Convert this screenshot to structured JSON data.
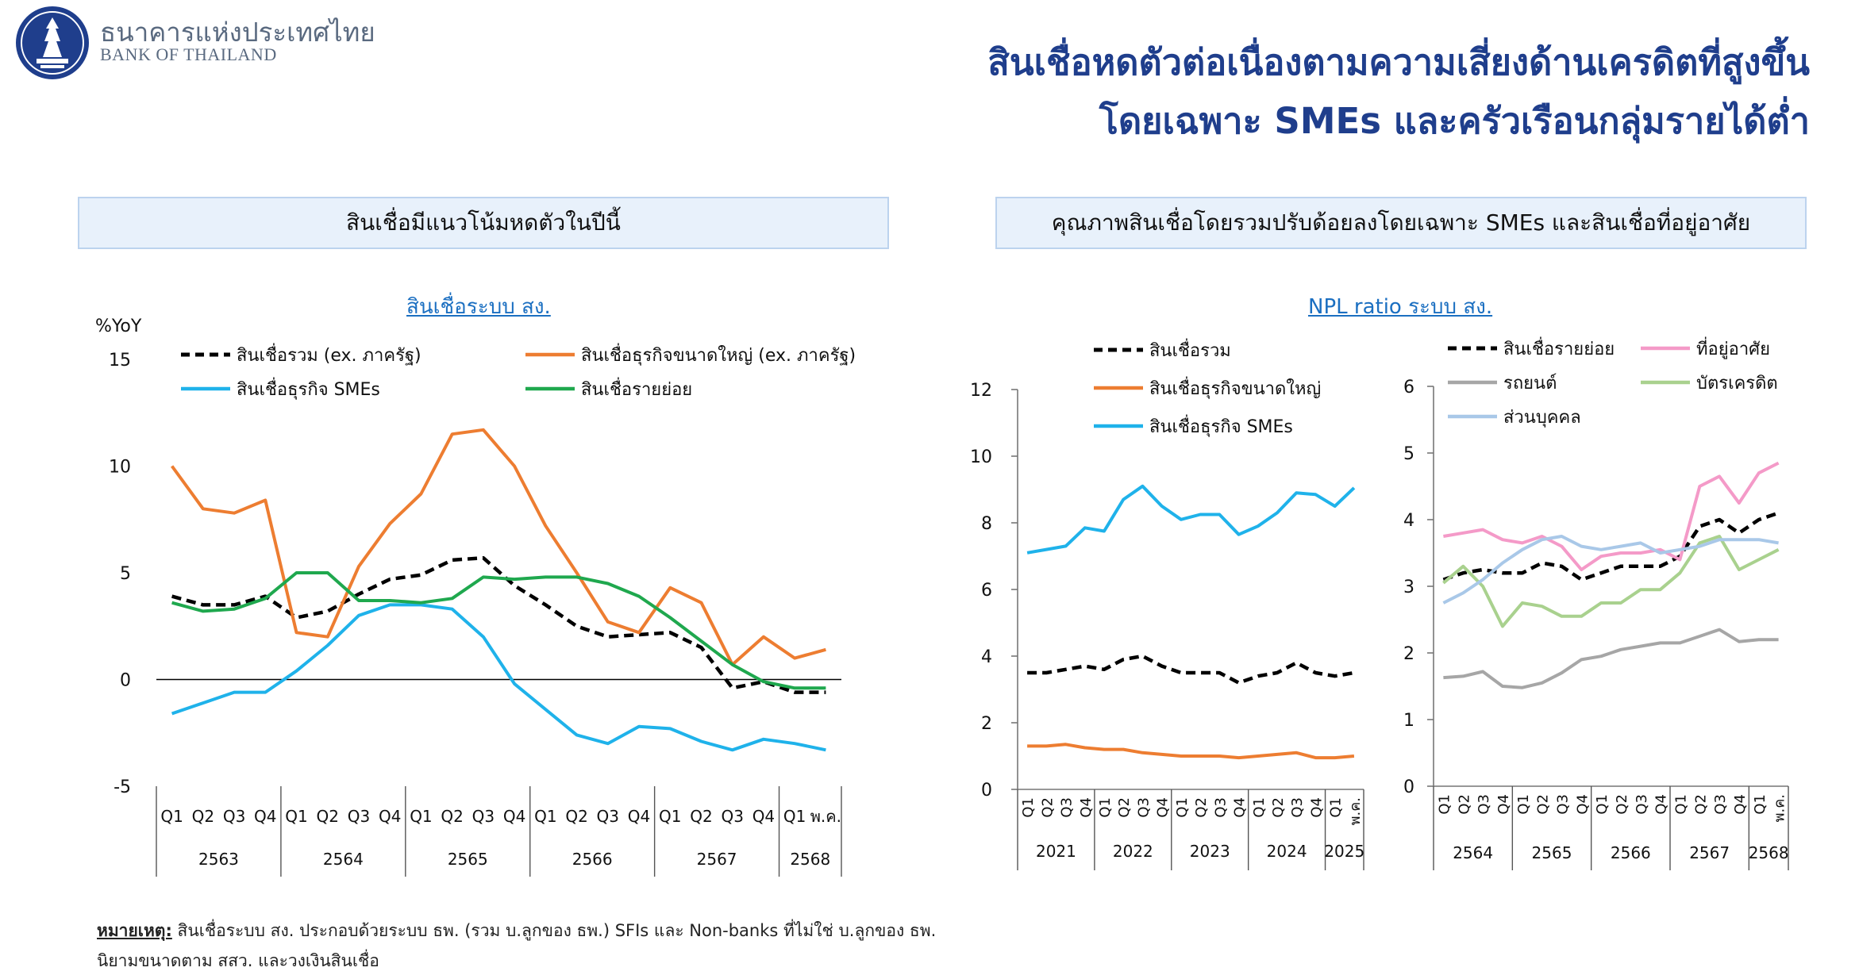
{
  "header": {
    "bank_name_th": "ธนาคารแห่งประเทศไทย",
    "bank_name_en": "BANK OF THAILAND",
    "headline_line1": "สินเชื่อหดตัวต่อเนื่องตามความเสี่ยงด้านเครดิตที่สูงขึ้น",
    "headline_line2": "โดยเฉพาะ SMEs และครัวเรือนกลุ่มรายได้ต่ำ"
  },
  "panels": {
    "left_title": "สินเชื่อมีแนวโน้มหดตัวในปีนี้",
    "right_title": "คุณภาพสินเชื่อโดยรวมปรับด้อยลงโดยเฉพาะ SMEs และสินเชื่อที่อยู่อาศัย"
  },
  "note": {
    "label": "หมายเหตุ:",
    "line1": " สินเชื่อระบบ สง. ประกอบด้วยระบบ ธพ. (รวม บ.ลูกของ ธพ.) SFIs และ Non-banks ที่ไม่ใช่ บ.ลูกของ ธพ.",
    "line2": "นิยามขนาดตาม สสว. และวงเงินสินเชื่อ"
  },
  "colors": {
    "black": "#000000",
    "orange": "#ed7d31",
    "blue": "#1fb2ea",
    "green": "#1fa84e",
    "gray": "#a6a6a6",
    "pink": "#f49ac8",
    "lightgreen": "#a9d18e",
    "lightblue": "#a9c8e8"
  },
  "chart_data": [
    {
      "type": "line",
      "title": "สินเชื่อระบบ สง.",
      "ylabel": "%YoY",
      "ylim": [
        -5,
        15
      ],
      "yticks": [
        -5,
        0,
        5,
        10,
        15
      ],
      "quarters": [
        "Q1",
        "Q2",
        "Q3",
        "Q4",
        "Q1",
        "Q2",
        "Q3",
        "Q4",
        "Q1",
        "Q2",
        "Q3",
        "Q4",
        "Q1",
        "Q2",
        "Q3",
        "Q4",
        "Q1",
        "Q2",
        "Q3",
        "Q4",
        "Q1",
        "พ.ค."
      ],
      "years": [
        {
          "label": "2563",
          "span": 4
        },
        {
          "label": "2564",
          "span": 4
        },
        {
          "label": "2565",
          "span": 4
        },
        {
          "label": "2566",
          "span": 4
        },
        {
          "label": "2567",
          "span": 4
        },
        {
          "label": "2568",
          "span": 2
        }
      ],
      "half_step": true,
      "series": [
        {
          "name": "สินเชื่อรวม (ex. ภาครัฐ)",
          "color": "#000000",
          "dash": true,
          "values": [
            3.9,
            3.5,
            3.5,
            3.9,
            2.9,
            3.2,
            4.0,
            4.7,
            4.9,
            5.6,
            5.7,
            4.4,
            3.5,
            2.5,
            2.0,
            2.1,
            2.2,
            1.5,
            -0.4,
            -0.1,
            -0.6,
            -0.6
          ]
        },
        {
          "name": "สินเชื่อธุรกิจขนาดใหญ่ (ex. ภาครัฐ)",
          "color": "#ed7d31",
          "dash": false,
          "values": [
            10.0,
            8.0,
            7.8,
            8.4,
            2.2,
            2.0,
            5.3,
            7.3,
            8.7,
            11.5,
            11.7,
            10.0,
            7.2,
            5.0,
            2.7,
            2.2,
            4.3,
            3.6,
            0.7,
            2.0,
            1.0,
            1.4
          ]
        },
        {
          "name": "สินเชื่อธุรกิจ SMEs",
          "color": "#1fb2ea",
          "dash": false,
          "values": [
            -1.6,
            -1.1,
            -0.6,
            -0.6,
            0.4,
            1.6,
            3.0,
            3.5,
            3.5,
            3.3,
            2.0,
            -0.2,
            -1.4,
            -2.6,
            -3.0,
            -2.2,
            -2.3,
            -2.9,
            -3.3,
            -2.8,
            -3.0,
            -3.3
          ]
        },
        {
          "name": "สินเชื่อรายย่อย",
          "color": "#1fa84e",
          "dash": false,
          "values": [
            3.6,
            3.2,
            3.3,
            3.8,
            5.0,
            5.0,
            3.7,
            3.7,
            3.6,
            3.8,
            4.8,
            4.7,
            4.8,
            4.8,
            4.5,
            3.9,
            2.9,
            1.8,
            0.7,
            -0.1,
            -0.4,
            -0.4
          ]
        }
      ],
      "legend": "top, two columns"
    },
    {
      "type": "line",
      "title": "NPL ratio ระบบ สง.",
      "ylim": [
        0,
        12
      ],
      "yticks": [
        0,
        2,
        4,
        6,
        8,
        10,
        12
      ],
      "quarters": [
        "Q1",
        "Q2",
        "Q3",
        "Q4",
        "Q1",
        "Q2",
        "Q3",
        "Q4",
        "Q1",
        "Q2",
        "Q3",
        "Q4",
        "Q1",
        "Q2",
        "Q3",
        "Q4",
        "Q1",
        "พ.ค."
      ],
      "years": [
        {
          "label": "2021",
          "span": 4
        },
        {
          "label": "2022",
          "span": 4
        },
        {
          "label": "2023",
          "span": 4
        },
        {
          "label": "2024",
          "span": 4
        },
        {
          "label": "2025",
          "span": 2
        }
      ],
      "series": [
        {
          "name": "สินเชื่อรวม",
          "color": "#000000",
          "dash": true,
          "values": [
            3.5,
            3.5,
            3.6,
            3.7,
            3.6,
            3.9,
            4.0,
            3.7,
            3.5,
            3.5,
            3.5,
            3.2,
            3.4,
            3.5,
            3.8,
            3.5,
            3.4,
            3.5
          ]
        },
        {
          "name": "สินเชื่อธุรกิจขนาดใหญ่",
          "color": "#ed7d31",
          "dash": false,
          "values": [
            1.3,
            1.3,
            1.35,
            1.25,
            1.2,
            1.2,
            1.1,
            1.05,
            1.0,
            1.0,
            1.0,
            0.95,
            1.0,
            1.05,
            1.1,
            0.95,
            0.95,
            1.0
          ]
        },
        {
          "name": "สินเชื่อธุรกิจ SMEs",
          "color": "#1fb2ea",
          "dash": false,
          "values": [
            7.1,
            7.2,
            7.3,
            7.85,
            7.75,
            8.7,
            9.1,
            8.5,
            8.1,
            8.25,
            8.25,
            7.65,
            7.9,
            8.3,
            8.9,
            8.85,
            8.5,
            9.05
          ]
        }
      ],
      "legend": "top-left"
    },
    {
      "type": "line",
      "ylim": [
        0,
        6
      ],
      "yticks": [
        0,
        1,
        2,
        3,
        4,
        5,
        6
      ],
      "quarters": [
        "Q1",
        "Q2",
        "Q3",
        "Q4",
        "Q1",
        "Q2",
        "Q3",
        "Q4",
        "Q1",
        "Q2",
        "Q3",
        "Q4",
        "Q1",
        "Q2",
        "Q3",
        "Q4",
        "Q1",
        "พ.ค."
      ],
      "years": [
        {
          "label": "2564",
          "span": 4
        },
        {
          "label": "2565",
          "span": 4
        },
        {
          "label": "2566",
          "span": 4
        },
        {
          "label": "2567",
          "span": 4
        },
        {
          "label": "2568",
          "span": 2
        }
      ],
      "series": [
        {
          "name": "สินเชื่อรายย่อย",
          "color": "#000000",
          "dash": true,
          "values": [
            3.1,
            3.2,
            3.25,
            3.2,
            3.2,
            3.35,
            3.3,
            3.1,
            3.2,
            3.3,
            3.3,
            3.3,
            3.45,
            3.9,
            4.0,
            3.8,
            4.0,
            4.1
          ]
        },
        {
          "name": "ที่อยู่อาศัย",
          "color": "#f49ac8",
          "dash": false,
          "values": [
            3.75,
            3.8,
            3.85,
            3.7,
            3.65,
            3.75,
            3.6,
            3.25,
            3.45,
            3.5,
            3.5,
            3.55,
            3.4,
            4.5,
            4.65,
            4.25,
            4.7,
            4.85
          ]
        },
        {
          "name": "รถยนต์",
          "color": "#a6a6a6",
          "dash": false,
          "values": [
            1.63,
            1.65,
            1.72,
            1.5,
            1.48,
            1.55,
            1.7,
            1.9,
            1.95,
            2.05,
            2.1,
            2.15,
            2.15,
            2.25,
            2.35,
            2.17,
            2.2,
            2.2
          ]
        },
        {
          "name": "บัตรเครดิต",
          "color": "#a9d18e",
          "dash": false,
          "values": [
            3.05,
            3.3,
            3.0,
            2.4,
            2.75,
            2.7,
            2.55,
            2.55,
            2.75,
            2.75,
            2.95,
            2.95,
            3.2,
            3.65,
            3.75,
            3.25,
            3.4,
            3.55
          ]
        },
        {
          "name": "ส่วนบุคคล",
          "color": "#a9c8e8",
          "dash": false,
          "values": [
            2.75,
            2.9,
            3.1,
            3.35,
            3.55,
            3.7,
            3.75,
            3.6,
            3.55,
            3.6,
            3.65,
            3.5,
            3.55,
            3.6,
            3.7,
            3.7,
            3.7,
            3.65
          ]
        }
      ],
      "legend": "top"
    }
  ]
}
